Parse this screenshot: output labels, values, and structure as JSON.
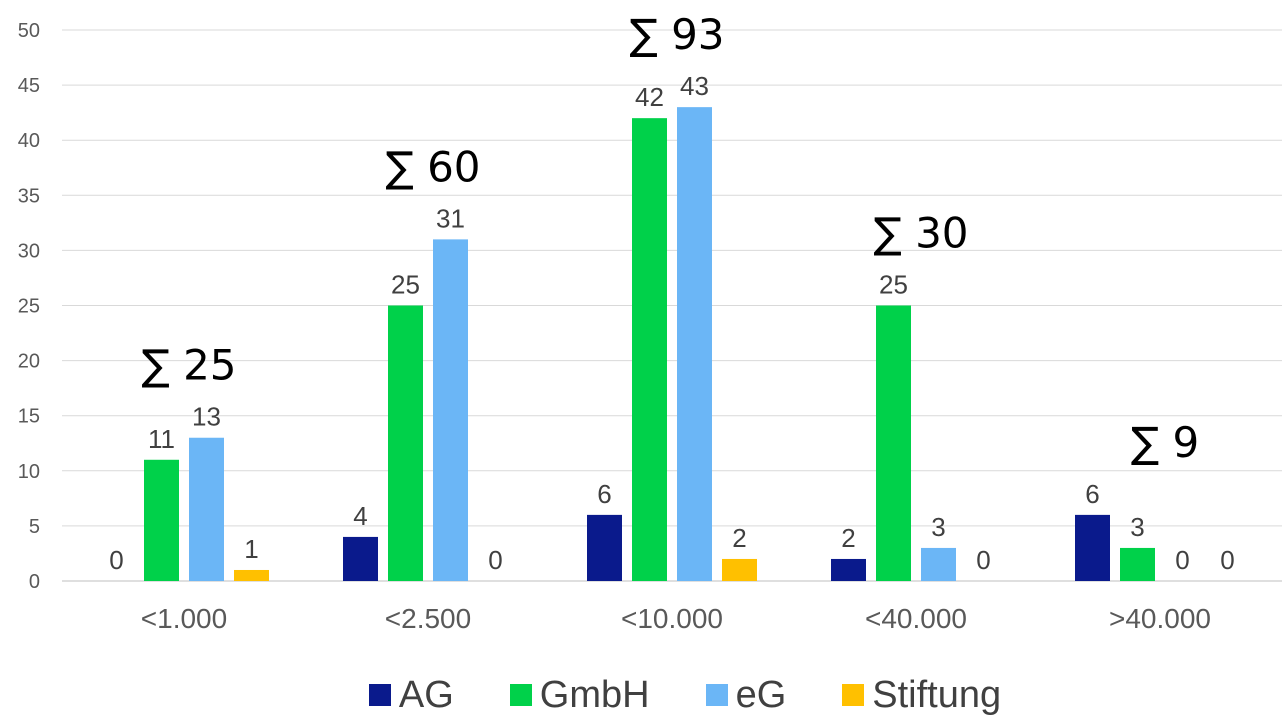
{
  "chart_data": {
    "type": "bar",
    "categories": [
      "<1.000",
      "<2.500",
      "<10.000",
      "<40.000",
      ">40.000"
    ],
    "series": [
      {
        "name": "AG",
        "color": "#0a1a8c",
        "values": [
          0,
          4,
          6,
          2,
          6
        ]
      },
      {
        "name": "GmbH",
        "color": "#00d14a",
        "values": [
          11,
          25,
          42,
          25,
          3
        ]
      },
      {
        "name": "eG",
        "color": "#6bb6f6",
        "values": [
          13,
          31,
          43,
          3,
          0
        ]
      },
      {
        "name": "Stiftung",
        "color": "#ffc000",
        "values": [
          1,
          0,
          2,
          0,
          0
        ]
      }
    ],
    "totals": [
      "∑ 25",
      "∑ 60",
      "∑ 93",
      "∑ 30",
      "∑ 9"
    ],
    "ylim": [
      0,
      50
    ],
    "yticks": [
      0,
      5,
      10,
      15,
      20,
      25,
      30,
      35,
      40,
      45,
      50
    ],
    "grid": true,
    "legend_position": "bottom",
    "title": "",
    "xlabel": "",
    "ylabel": ""
  }
}
